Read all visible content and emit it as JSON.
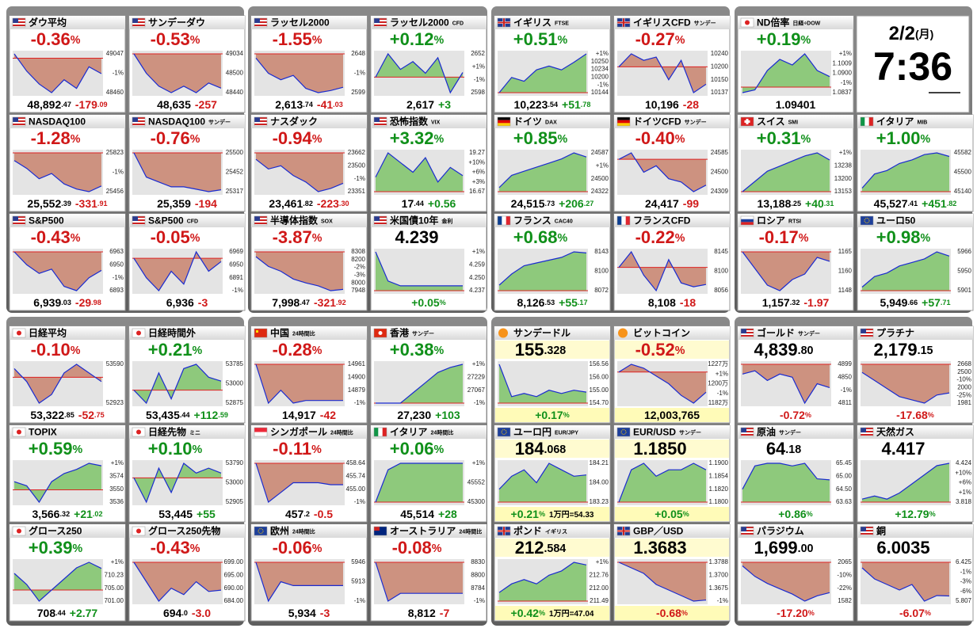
{
  "clock": {
    "date": "2/2",
    "weekday": "(月)",
    "time": "7:36"
  },
  "tiles": [
    {
      "name": "ダウ平均",
      "flag": "us",
      "main": "-0.36%",
      "foot": [
        "48,892.47",
        "-179.09"
      ],
      "axis": [
        "49047",
        "-1%",
        "48460"
      ],
      "line": [
        0.1,
        -0.3,
        -0.6,
        -0.8,
        -0.5,
        -0.7,
        -0.2,
        -0.36
      ]
    },
    {
      "name": "サンデーダウ",
      "flag": "us",
      "main": "-0.53%",
      "foot": [
        "48,635",
        "-257"
      ],
      "axis": [
        "49034",
        "48500",
        "48440"
      ],
      "line": [
        0,
        -0.3,
        -0.5,
        -0.6,
        -0.5,
        -0.6,
        -0.45,
        -0.53
      ]
    },
    {
      "name": "ラッセル2000",
      "flag": "us",
      "main": "-1.55%",
      "foot": [
        "2,613.74",
        "-41.03"
      ],
      "axis": [
        "2648",
        "-1%",
        "2599"
      ],
      "line": [
        -0.2,
        -0.9,
        -1.2,
        -1.0,
        -1.6,
        -1.8,
        -1.7,
        -1.55
      ]
    },
    {
      "name": "ラッセル2000",
      "tag": "CFD",
      "flag": "us",
      "main": "+0.12%",
      "foot": [
        "2,617",
        "+3"
      ],
      "axis": [
        "2652",
        "+1%",
        "-1%",
        "2598"
      ],
      "line": [
        0,
        0.6,
        0.2,
        0.4,
        0.1,
        0.5,
        -0.4,
        0.12
      ]
    },
    {
      "name": "イギリス",
      "tag": "FTSE",
      "flag": "uk",
      "main": "+0.51%",
      "foot": [
        "10,223.54",
        "+51.78"
      ],
      "axis": [
        "+1%",
        "10250",
        "10234",
        "10200",
        "-1%",
        "10144"
      ],
      "line": [
        0,
        0.2,
        0.15,
        0.3,
        0.35,
        0.3,
        0.4,
        0.51
      ]
    },
    {
      "name": "イギリスCFD",
      "tag": "サンデー",
      "flag": "uk",
      "main": "-0.27%",
      "foot": [
        "10,196",
        "-28"
      ],
      "axis": [
        "10240",
        "10200",
        "10150",
        "10137"
      ],
      "line": [
        0,
        0.2,
        0.1,
        0.15,
        -0.2,
        0.1,
        -0.4,
        -0.27
      ]
    },
    {
      "name": "ND倍率",
      "tag": "日経÷DOW",
      "flag": "jp",
      "main": "+0.19%",
      "foot": [
        "1.09401"
      ],
      "axis": [
        "+1%",
        "1.1009",
        "1.0900",
        "-1%",
        "1.0837"
      ],
      "line": [
        -0.1,
        -0.05,
        0.3,
        0.5,
        0.4,
        0.6,
        0.3,
        0.19
      ]
    },
    {
      "name": "NASDAQ100",
      "flag": "us",
      "main": "-1.28%",
      "foot": [
        "25,552.39",
        "-331.91"
      ],
      "axis": [
        "25823",
        "-1%",
        "25456"
      ],
      "line": [
        -0.3,
        -0.6,
        -1.0,
        -0.8,
        -1.2,
        -1.4,
        -1.5,
        -1.28
      ]
    },
    {
      "name": "NASDAQ100",
      "tag": "サンデー",
      "flag": "us",
      "main": "-0.76%",
      "foot": [
        "25,359",
        "-194"
      ],
      "axis": [
        "25500",
        "25452",
        "25317"
      ],
      "line": [
        0,
        -0.5,
        -0.6,
        -0.7,
        -0.7,
        -0.75,
        -0.8,
        -0.76
      ]
    },
    {
      "name": "ナスダック",
      "flag": "us",
      "main": "-0.94%",
      "foot": [
        "23,461.82",
        "-223.30"
      ],
      "axis": [
        "23662",
        "23500",
        "-1%",
        "23351"
      ],
      "line": [
        -0.2,
        -0.5,
        -0.4,
        -0.7,
        -0.9,
        -1.2,
        -1.1,
        -0.94
      ]
    },
    {
      "name": "恐怖指数",
      "tag": "VIX",
      "flag": "us",
      "main": "+3.32%",
      "foot": [
        "17.44",
        "+0.56"
      ],
      "axis": [
        "19.27",
        "+10%",
        "+6%",
        "+3%",
        "16.67"
      ],
      "line": [
        3,
        8,
        6,
        4,
        7,
        2,
        5,
        3.32
      ]
    },
    {
      "name": "ドイツ",
      "tag": "DAX",
      "flag": "de",
      "main": "+0.85%",
      "foot": [
        "24,515.73",
        "+206.27"
      ],
      "axis": [
        "24587",
        "+1%",
        "24500",
        "24322"
      ],
      "line": [
        0.1,
        0.4,
        0.5,
        0.6,
        0.7,
        0.8,
        0.95,
        0.85
      ]
    },
    {
      "name": "ドイツCFD",
      "tag": "サンデー",
      "flag": "de",
      "main": "-0.40%",
      "foot": [
        "24,417",
        "-99"
      ],
      "axis": [
        "24585",
        "24500",
        "24309"
      ],
      "line": [
        0,
        0.1,
        -0.2,
        -0.1,
        -0.3,
        -0.35,
        -0.5,
        -0.4
      ]
    },
    {
      "name": "スイス",
      "tag": "SMI",
      "flag": "ch",
      "main": "+0.31%",
      "foot": [
        "13,188.25",
        "+40.31"
      ],
      "axis": [
        "+1%",
        "13238",
        "13200",
        "13153"
      ],
      "line": [
        0,
        0.1,
        0.2,
        0.25,
        0.3,
        0.35,
        0.38,
        0.31
      ]
    },
    {
      "name": "イタリア",
      "tag": "MIB",
      "flag": "it",
      "main": "+1.00%",
      "foot": [
        "45,527.41",
        "+451.82"
      ],
      "axis": [
        "45582",
        "45500",
        "45140"
      ],
      "line": [
        0.1,
        0.5,
        0.6,
        0.8,
        0.9,
        1.05,
        1.1,
        1.0
      ]
    },
    {
      "name": "S&P500",
      "flag": "us",
      "main": "-0.43%",
      "foot": [
        "6,939.03",
        "-29.98"
      ],
      "axis": [
        "6963",
        "6950",
        "-1%",
        "6893"
      ],
      "line": [
        0,
        -0.3,
        -0.5,
        -0.4,
        -0.8,
        -0.9,
        -0.6,
        -0.43
      ]
    },
    {
      "name": "S&P500",
      "tag": "CFD",
      "flag": "us",
      "main": "-0.05%",
      "foot": [
        "6,936",
        "-3"
      ],
      "axis": [
        "6969",
        "6950",
        "6891",
        "-1%"
      ],
      "line": [
        0,
        -0.3,
        -0.5,
        -0.2,
        -0.4,
        0.1,
        -0.2,
        -0.05
      ]
    },
    {
      "name": "半導体指数",
      "tag": "SOX",
      "flag": "us",
      "main": "-3.87%",
      "foot": [
        "7,998.47",
        "-321.92"
      ],
      "axis": [
        "8308",
        "8200",
        "-2%",
        "-3%",
        "8000",
        "7948"
      ],
      "line": [
        -0.5,
        -1.5,
        -2.0,
        -2.8,
        -3.2,
        -3.5,
        -4.0,
        -3.87
      ]
    },
    {
      "name": "米国債10年",
      "tag": "金利",
      "flag": "us",
      "main": "4.239",
      "foot": [
        "+0.05%"
      ],
      "axis": [
        "+1%",
        "4.259",
        "4.250",
        "4.237"
      ],
      "line": [
        0.4,
        0.1,
        0.05,
        0.05,
        0.05,
        0.05,
        0.05,
        0.05
      ]
    },
    {
      "name": "フランス",
      "tag": "CAC40",
      "flag": "fr",
      "main": "+0.68%",
      "foot": [
        "8,126.53",
        "+55.17"
      ],
      "axis": [
        "8143",
        "8100",
        "8072"
      ],
      "line": [
        0.1,
        0.3,
        0.45,
        0.5,
        0.55,
        0.6,
        0.7,
        0.68
      ]
    },
    {
      "name": "フランスCFD",
      "flag": "fr",
      "main": "-0.22%",
      "foot": [
        "8,108",
        "-18"
      ],
      "axis": [
        "8145",
        "8100",
        "8056"
      ],
      "line": [
        0,
        0.2,
        -0.1,
        -0.3,
        0.1,
        -0.2,
        -0.25,
        -0.22
      ]
    },
    {
      "name": "ロシア",
      "tag": "RTSI",
      "flag": "ru",
      "main": "-0.17%",
      "foot": [
        "1,157.32",
        "-1.97"
      ],
      "axis": [
        "1165",
        "1160",
        "1148"
      ],
      "line": [
        0,
        -0.3,
        -0.6,
        -0.7,
        -0.5,
        -0.4,
        -0.1,
        -0.17
      ]
    },
    {
      "name": "ユーロ50",
      "flag": "eu",
      "main": "+0.98%",
      "foot": [
        "5,949.66",
        "+57.71"
      ],
      "axis": [
        "5966",
        "5950",
        "5901"
      ],
      "line": [
        0.1,
        0.4,
        0.5,
        0.7,
        0.8,
        0.9,
        1.1,
        0.98
      ]
    },
    {
      "name": "日経平均",
      "flag": "jp",
      "main": "-0.10%",
      "foot": [
        "53,322.85",
        "-52.75"
      ],
      "axis": [
        "53590",
        "52923"
      ],
      "line": [
        0.2,
        -0.1,
        -0.6,
        -0.4,
        0.1,
        0.3,
        0.1,
        -0.1
      ]
    },
    {
      "name": "日経時間外",
      "flag": "jp",
      "main": "+0.21%",
      "foot": [
        "53,435.44",
        "+112.59"
      ],
      "axis": [
        "53785",
        "53000",
        "52875"
      ],
      "line": [
        0,
        -0.3,
        0.4,
        -0.2,
        0.5,
        0.6,
        0.3,
        0.21
      ]
    },
    {
      "name": "中国",
      "tag": "24時間比",
      "flag": "cn",
      "main": "-0.28%",
      "foot": [
        "14,917",
        "-42"
      ],
      "axis": [
        "14961",
        "14900",
        "14879",
        "-1%"
      ],
      "line": [
        0,
        -0.3,
        -0.2,
        -0.3,
        -0.28,
        -0.28,
        -0.28,
        -0.28
      ]
    },
    {
      "name": "香港",
      "tag": "サンデー",
      "flag": "hk",
      "main": "+0.38%",
      "foot": [
        "27,230",
        "+103"
      ],
      "axis": [
        "+1%",
        "27229",
        "27067",
        "-1%"
      ],
      "line": [
        0,
        0,
        0,
        0.1,
        0.2,
        0.3,
        0.35,
        0.38
      ]
    },
    {
      "name": "サンデードル",
      "flag": "coin",
      "main": "155.328",
      "foot": [
        "+0.17%"
      ],
      "axis": [
        "156.56",
        "156.00",
        "155.00",
        "154.70"
      ],
      "line": [
        0.6,
        0.1,
        0.15,
        0.1,
        0.2,
        0.15,
        0.2,
        0.17
      ],
      "highlight": true
    },
    {
      "name": "ビットコイン",
      "flag": "coin",
      "main": "-0.52%",
      "foot": [
        "12,003,765"
      ],
      "axis": [
        "1227万",
        "+1%",
        "1200万",
        "-1%",
        "1182万"
      ],
      "line": [
        0,
        0.2,
        0.1,
        -0.1,
        -0.3,
        -0.6,
        -0.8,
        -0.52
      ],
      "highlight": true
    },
    {
      "name": "ゴールド",
      "tag": "サンデー",
      "flag": "us",
      "main": "4,839.80",
      "foot": [
        "-0.72%"
      ],
      "axis": [
        "4899",
        "4850",
        "-1%",
        "4811"
      ],
      "line": [
        -0.3,
        -0.2,
        -0.5,
        -0.3,
        -0.4,
        -1.2,
        -0.6,
        -0.72
      ]
    },
    {
      "name": "プラチナ",
      "flag": "us",
      "main": "2,179.15",
      "foot": [
        "-17.68%"
      ],
      "axis": [
        "2668",
        "2500",
        "-10%",
        "2000",
        "-25%",
        "1981"
      ],
      "line": [
        -5,
        -10,
        -15,
        -20,
        -22,
        -24,
        -19,
        -17.68
      ]
    },
    {
      "name": "TOPIX",
      "flag": "jp",
      "main": "+0.59%",
      "foot": [
        "3,566.32",
        "+21.02"
      ],
      "axis": [
        "+1%",
        "3574",
        "3550",
        "3536"
      ],
      "line": [
        0.2,
        0.1,
        -0.3,
        0.2,
        0.4,
        0.5,
        0.65,
        0.59
      ]
    },
    {
      "name": "日経先物",
      "tag": "ミニ",
      "flag": "jp",
      "main": "+0.10%",
      "foot": [
        "53,445",
        "+55"
      ],
      "axis": [
        "53790",
        "53000",
        "52905"
      ],
      "line": [
        0,
        -0.5,
        0.2,
        -0.3,
        0.3,
        0.1,
        0.2,
        0.1
      ]
    },
    {
      "name": "シンガポール",
      "tag": "24時間比",
      "flag": "sg",
      "main": "-0.11%",
      "foot": [
        "457.2",
        "-0.5"
      ],
      "axis": [
        "458.64",
        "455.74",
        "455.00",
        "-1%"
      ],
      "line": [
        0,
        -0.2,
        -0.15,
        -0.1,
        -0.1,
        -0.1,
        -0.11,
        -0.11
      ]
    },
    {
      "name": "イタリア",
      "tag": "24時間比",
      "flag": "it",
      "main": "+0.06%",
      "foot": [
        "45,514",
        "+28"
      ],
      "axis": [
        "+1%",
        "45552",
        "45300"
      ],
      "line": [
        0,
        0.05,
        0.06,
        0.06,
        0.06,
        0.06,
        0.06,
        0.06
      ]
    },
    {
      "name": "ユーロ円",
      "tag": "EUR/JPY",
      "flag": "eu",
      "main": "184.068",
      "foot": [
        "+0.21%",
        "1万円=54.33"
      ],
      "axis": [
        "184.21",
        "184.00",
        "183.23"
      ],
      "line": [
        0.1,
        0.2,
        0.25,
        0.15,
        0.3,
        0.25,
        0.2,
        0.21
      ],
      "highlight": true
    },
    {
      "name": "EUR/USD",
      "tag": "サンデー",
      "flag": "eu",
      "main": "1.1850",
      "foot": [
        "+0.05%"
      ],
      "axis": [
        "1.1900",
        "1.1854",
        "1.1820",
        "1.1800"
      ],
      "line": [
        0,
        0.05,
        0.06,
        0.04,
        0.05,
        0.05,
        0.06,
        0.05
      ],
      "highlight": true
    },
    {
      "name": "原油",
      "tag": "サンデー",
      "flag": "us",
      "main": "64.18",
      "foot": [
        "+0.86%"
      ],
      "axis": [
        "65.45",
        "65.00",
        "64.50",
        "63.63"
      ],
      "line": [
        0.5,
        1.4,
        1.5,
        1.5,
        1.4,
        1.5,
        0.9,
        0.86
      ]
    },
    {
      "name": "天然ガス",
      "flag": "us",
      "main": "4.417",
      "foot": [
        "+12.79%"
      ],
      "axis": [
        "4.424",
        "+10%",
        "+6%",
        "+1%",
        "3.818"
      ],
      "line": [
        1,
        2,
        1,
        3,
        6,
        9,
        12,
        12.79
      ]
    },
    {
      "name": "グロース250",
      "flag": "jp",
      "main": "+0.39%",
      "foot": [
        "708.44",
        "+2.77"
      ],
      "axis": [
        "+1%",
        "710.23",
        "705.00",
        "701.00"
      ],
      "line": [
        0.3,
        0.1,
        -0.2,
        0,
        0.2,
        0.4,
        0.5,
        0.39
      ]
    },
    {
      "name": "グロース250先物",
      "flag": "jp",
      "main": "-0.43%",
      "foot": [
        "694.0",
        "-3.0"
      ],
      "axis": [
        "699.00",
        "695.00",
        "690.00",
        "684.00"
      ],
      "line": [
        0,
        -0.3,
        -0.6,
        -0.4,
        -0.5,
        -0.3,
        -0.45,
        -0.43
      ]
    },
    {
      "name": "欧州",
      "tag": "24時間比",
      "flag": "eu",
      "main": "-0.06%",
      "foot": [
        "5,934",
        "-3"
      ],
      "axis": [
        "5946",
        "5913",
        "-1%"
      ],
      "line": [
        0,
        -0.1,
        -0.05,
        -0.06,
        -0.06,
        -0.06,
        -0.06,
        -0.06
      ]
    },
    {
      "name": "オーストラリア",
      "tag": "24時間比",
      "flag": "au",
      "main": "-0.08%",
      "foot": [
        "8,812",
        "-7"
      ],
      "axis": [
        "8830",
        "8800",
        "8784",
        "-1%"
      ],
      "line": [
        0,
        -0.1,
        -0.08,
        -0.08,
        -0.08,
        -0.08,
        -0.08,
        -0.08
      ]
    },
    {
      "name": "ポンド",
      "tag": "イギリス",
      "flag": "uk",
      "main": "212.584",
      "foot": [
        "+0.42%",
        "1万円=47.04"
      ],
      "axis": [
        "+1%",
        "212.76",
        "212.00",
        "211.49"
      ],
      "line": [
        0.1,
        0.2,
        0.25,
        0.2,
        0.3,
        0.35,
        0.45,
        0.42
      ],
      "highlight": true
    },
    {
      "name": "GBP／USD",
      "flag": "uk",
      "main": "1.3683",
      "foot": [
        "-0.68%"
      ],
      "axis": [
        "1.3788",
        "1.3700",
        "1.3675",
        "-1%"
      ],
      "line": [
        0,
        -0.1,
        -0.2,
        -0.4,
        -0.5,
        -0.6,
        -0.7,
        -0.68
      ],
      "highlight": true
    },
    {
      "name": "パラジウム",
      "flag": "us",
      "main": "1,699.00",
      "foot": [
        "-17.20%"
      ],
      "axis": [
        "2065",
        "-10%",
        "-22%",
        "1582"
      ],
      "line": [
        -2,
        -8,
        -12,
        -15,
        -18,
        -22,
        -19,
        -17.2
      ]
    },
    {
      "name": "銅",
      "flag": "us",
      "main": "6.0035",
      "foot": [
        "-6.07%"
      ],
      "axis": [
        "6.425",
        "-1%",
        "-3%",
        "-6%",
        "5.807"
      ],
      "line": [
        -1,
        -3,
        -4,
        -5,
        -4,
        -7,
        -6,
        -6.07
      ]
    }
  ]
}
